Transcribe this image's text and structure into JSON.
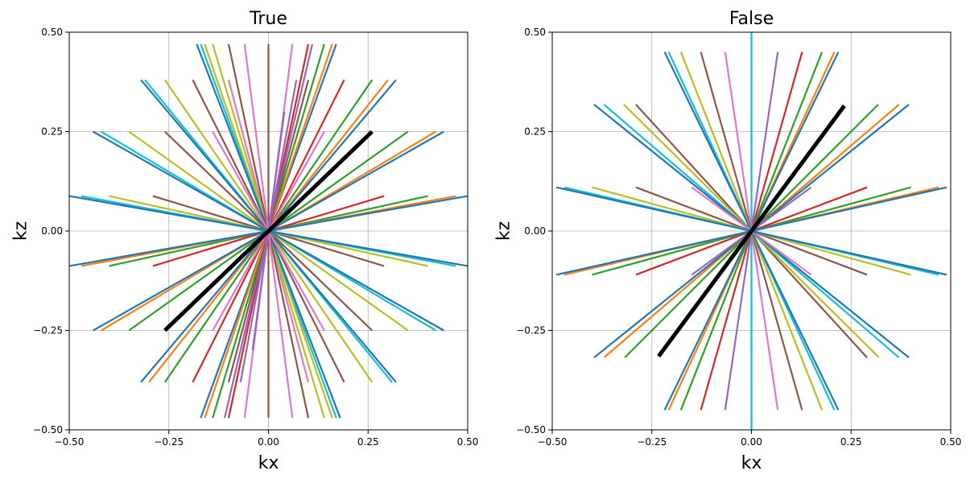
{
  "palette": [
    "#1f77b4",
    "#ff7f0e",
    "#2ca02c",
    "#d62728",
    "#9467bd",
    "#8c564b",
    "#e377c2",
    "#7f7f7f",
    "#bcbd22",
    "#17becf"
  ],
  "highlight_color": "#000000",
  "chart_data": [
    {
      "type": "line",
      "title": "True",
      "xlabel": "kx",
      "ylabel": "kz",
      "xlim": [
        -0.5,
        0.5
      ],
      "ylim": [
        -0.5,
        0.5
      ],
      "xticks": [
        "−0.50",
        "−0.25",
        "0.00",
        "0.25",
        "0.50"
      ],
      "yticks": [
        "−0.50",
        "−0.25",
        "0.00",
        "0.25",
        "0.50"
      ],
      "grid": true,
      "spokes": [
        {
          "x": 0.0,
          "y": 0.47,
          "color": "#8c564b"
        },
        {
          "x": 0.1,
          "y": 0.47,
          "color": "#d62728"
        },
        {
          "x": 0.14,
          "y": 0.47,
          "color": "#2ca02c"
        },
        {
          "x": 0.17,
          "y": 0.47,
          "color": "#1f77b4"
        },
        {
          "x": 0.16,
          "y": 0.47,
          "color": "#ff7f0e"
        },
        {
          "x": 0.11,
          "y": 0.47,
          "color": "#9467bd"
        },
        {
          "x": 0.19,
          "y": 0.38,
          "color": "#d62728"
        },
        {
          "x": 0.26,
          "y": 0.38,
          "color": "#2ca02c"
        },
        {
          "x": 0.3,
          "y": 0.38,
          "color": "#ff7f0e"
        },
        {
          "x": 0.32,
          "y": 0.38,
          "color": "#1f77b4"
        },
        {
          "x": 0.1,
          "y": 0.38,
          "color": "#8c564b"
        },
        {
          "x": 0.14,
          "y": 0.25,
          "color": "#e377c2"
        },
        {
          "x": 0.35,
          "y": 0.25,
          "color": "#2ca02c"
        },
        {
          "x": 0.42,
          "y": 0.25,
          "color": "#ff7f0e"
        },
        {
          "x": 0.44,
          "y": 0.25,
          "color": "#1f77b4"
        },
        {
          "x": 0.29,
          "y": 0.088,
          "color": "#d62728"
        },
        {
          "x": 0.4,
          "y": 0.088,
          "color": "#2ca02c"
        },
        {
          "x": 0.47,
          "y": 0.088,
          "color": "#ff7f0e"
        },
        {
          "x": 0.5,
          "y": 0.088,
          "color": "#1f77b4"
        },
        {
          "x": -0.1,
          "y": 0.38,
          "color": "#e377c2"
        },
        {
          "x": -0.16,
          "y": 0.47,
          "color": "#bcbd22"
        },
        {
          "x": -0.14,
          "y": 0.47,
          "color": "#bcbd22"
        },
        {
          "x": -0.17,
          "y": 0.47,
          "color": "#17becf"
        },
        {
          "x": -0.18,
          "y": 0.47,
          "color": "#1f77b4"
        },
        {
          "x": -0.1,
          "y": 0.47,
          "color": "#8c564b"
        },
        {
          "x": -0.06,
          "y": 0.47,
          "color": "#e377c2"
        },
        {
          "x": -0.19,
          "y": 0.38,
          "color": "#8c564b"
        },
        {
          "x": -0.26,
          "y": 0.38,
          "color": "#bcbd22"
        },
        {
          "x": -0.31,
          "y": 0.38,
          "color": "#17becf"
        },
        {
          "x": -0.32,
          "y": 0.38,
          "color": "#1f77b4"
        },
        {
          "x": -0.14,
          "y": 0.25,
          "color": "#e377c2"
        },
        {
          "x": -0.26,
          "y": 0.25,
          "color": "#8c564b"
        },
        {
          "x": -0.35,
          "y": 0.25,
          "color": "#bcbd22"
        },
        {
          "x": -0.42,
          "y": 0.25,
          "color": "#17becf"
        },
        {
          "x": -0.44,
          "y": 0.25,
          "color": "#1f77b4"
        },
        {
          "x": -0.29,
          "y": 0.088,
          "color": "#8c564b"
        },
        {
          "x": -0.4,
          "y": 0.088,
          "color": "#bcbd22"
        },
        {
          "x": -0.47,
          "y": 0.088,
          "color": "#17becf"
        },
        {
          "x": -0.5,
          "y": 0.088,
          "color": "#1f77b4"
        },
        {
          "x": 0.06,
          "y": 0.47,
          "color": "#e377c2"
        },
        {
          "x": 0.07,
          "y": 0.38,
          "color": "#9467bd"
        },
        {
          "x": 0.04,
          "y": 0.3,
          "color": "#9467bd"
        }
      ],
      "highlight": {
        "x": 0.26,
        "y": 0.25
      }
    },
    {
      "type": "line",
      "title": "False",
      "xlabel": "kx",
      "ylabel": "kz",
      "xlim": [
        -0.5,
        0.5
      ],
      "ylim": [
        -0.5,
        0.5
      ],
      "xticks": [
        "−0.50",
        "−0.25",
        "0.00",
        "0.25",
        "0.50"
      ],
      "yticks": [
        "−0.50",
        "−0.25",
        "0.00",
        "0.25",
        "0.50"
      ],
      "grid": true,
      "spokes": [
        {
          "x": 0.0,
          "y": 0.5,
          "color": "#17becf"
        },
        {
          "x": 0.066,
          "y": 0.45,
          "color": "#9467bd"
        },
        {
          "x": 0.127,
          "y": 0.45,
          "color": "#d62728"
        },
        {
          "x": 0.177,
          "y": 0.45,
          "color": "#2ca02c"
        },
        {
          "x": 0.208,
          "y": 0.45,
          "color": "#ff7f0e"
        },
        {
          "x": 0.218,
          "y": 0.45,
          "color": "#1f77b4"
        },
        {
          "x": 0.318,
          "y": 0.318,
          "color": "#2ca02c"
        },
        {
          "x": 0.37,
          "y": 0.318,
          "color": "#ff7f0e"
        },
        {
          "x": 0.395,
          "y": 0.318,
          "color": "#1f77b4"
        },
        {
          "x": 0.15,
          "y": 0.11,
          "color": "#9467bd"
        },
        {
          "x": 0.29,
          "y": 0.11,
          "color": "#d62728"
        },
        {
          "x": 0.4,
          "y": 0.11,
          "color": "#2ca02c"
        },
        {
          "x": 0.47,
          "y": 0.11,
          "color": "#ff7f0e"
        },
        {
          "x": 0.49,
          "y": 0.11,
          "color": "#1f77b4"
        },
        {
          "x": -0.066,
          "y": 0.45,
          "color": "#e377c2"
        },
        {
          "x": -0.127,
          "y": 0.45,
          "color": "#8c564b"
        },
        {
          "x": -0.177,
          "y": 0.45,
          "color": "#bcbd22"
        },
        {
          "x": -0.208,
          "y": 0.45,
          "color": "#17becf"
        },
        {
          "x": -0.218,
          "y": 0.45,
          "color": "#1f77b4"
        },
        {
          "x": -0.29,
          "y": 0.318,
          "color": "#8c564b"
        },
        {
          "x": -0.32,
          "y": 0.318,
          "color": "#bcbd22"
        },
        {
          "x": -0.37,
          "y": 0.318,
          "color": "#17becf"
        },
        {
          "x": -0.395,
          "y": 0.318,
          "color": "#1f77b4"
        },
        {
          "x": -0.15,
          "y": 0.11,
          "color": "#e377c2"
        },
        {
          "x": -0.29,
          "y": 0.11,
          "color": "#8c564b"
        },
        {
          "x": -0.4,
          "y": 0.11,
          "color": "#bcbd22"
        },
        {
          "x": -0.47,
          "y": 0.11,
          "color": "#17becf"
        },
        {
          "x": -0.49,
          "y": 0.11,
          "color": "#1f77b4"
        }
      ],
      "highlight": {
        "x": 0.233,
        "y": 0.315
      }
    }
  ]
}
